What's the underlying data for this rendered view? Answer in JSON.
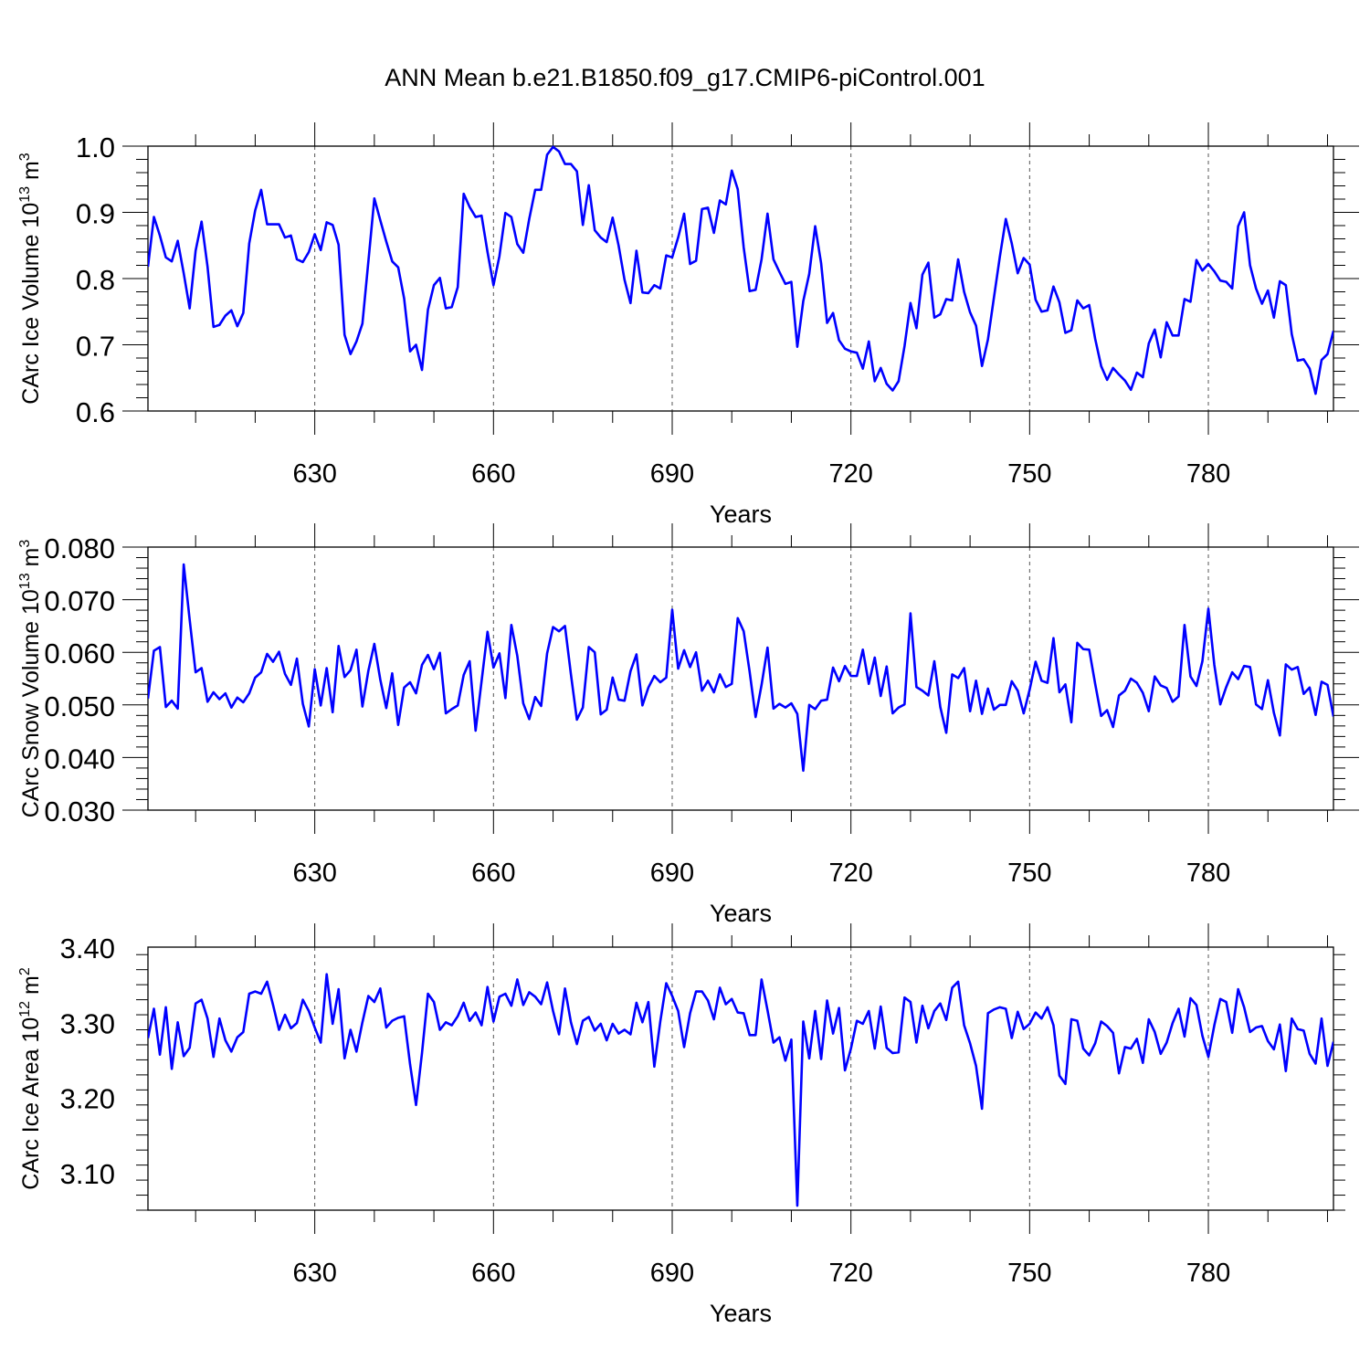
{
  "title": "ANN Mean b.e21.B1850.f09_g17.CMIP6-piControl.001",
  "line_color": "#0000ff",
  "chart_data": [
    {
      "type": "line",
      "ylabel": "CArc Ice Volume 10",
      "ylabel_exp": "13",
      "ylabel_unit": " m",
      "ylabel_unit_exp": "3",
      "xlabel": "Years",
      "xlim": [
        602,
        801
      ],
      "ylim": [
        0.6,
        1.0
      ],
      "yticks": [
        0.6,
        0.7,
        0.8,
        0.9,
        1.0
      ],
      "ytick_labels": [
        "0.6",
        "0.7",
        "0.8",
        "0.9",
        "1.0"
      ],
      "xticks": [
        630,
        660,
        690,
        720,
        750,
        780
      ],
      "xtick_labels": [
        "630",
        "660",
        "690",
        "720",
        "750",
        "780"
      ],
      "grid": "dashed vertical at major x ticks",
      "x_start": 602,
      "values": [
        0.818,
        0.893,
        0.865,
        0.832,
        0.826,
        0.857,
        0.808,
        0.755,
        0.842,
        0.886,
        0.818,
        0.727,
        0.73,
        0.744,
        0.752,
        0.728,
        0.748,
        0.853,
        0.903,
        0.934,
        0.882,
        0.882,
        0.882,
        0.862,
        0.865,
        0.829,
        0.825,
        0.84,
        0.867,
        0.843,
        0.885,
        0.881,
        0.851,
        0.715,
        0.686,
        0.705,
        0.732,
        0.826,
        0.921,
        0.888,
        0.856,
        0.826,
        0.817,
        0.77,
        0.69,
        0.7,
        0.662,
        0.753,
        0.79,
        0.801,
        0.755,
        0.757,
        0.787,
        0.928,
        0.908,
        0.893,
        0.895,
        0.84,
        0.79,
        0.834,
        0.899,
        0.893,
        0.852,
        0.839,
        0.89,
        0.934,
        0.934,
        0.987,
        0.999,
        0.992,
        0.973,
        0.973,
        0.962,
        0.881,
        0.941,
        0.873,
        0.862,
        0.855,
        0.892,
        0.85,
        0.798,
        0.763,
        0.842,
        0.779,
        0.778,
        0.79,
        0.785,
        0.835,
        0.832,
        0.862,
        0.898,
        0.822,
        0.827,
        0.905,
        0.907,
        0.869,
        0.918,
        0.912,
        0.963,
        0.935,
        0.847,
        0.781,
        0.783,
        0.829,
        0.898,
        0.829,
        0.81,
        0.792,
        0.795,
        0.697,
        0.766,
        0.807,
        0.879,
        0.823,
        0.733,
        0.748,
        0.707,
        0.694,
        0.69,
        0.688,
        0.664,
        0.705,
        0.645,
        0.665,
        0.641,
        0.631,
        0.645,
        0.698,
        0.763,
        0.725,
        0.806,
        0.824,
        0.741,
        0.746,
        0.769,
        0.767,
        0.829,
        0.78,
        0.749,
        0.729,
        0.668,
        0.708,
        0.771,
        0.833,
        0.89,
        0.853,
        0.808,
        0.831,
        0.821,
        0.768,
        0.75,
        0.752,
        0.788,
        0.764,
        0.718,
        0.722,
        0.767,
        0.755,
        0.76,
        0.709,
        0.668,
        0.647,
        0.665,
        0.655,
        0.646,
        0.632,
        0.658,
        0.651,
        0.702,
        0.723,
        0.681,
        0.734,
        0.714,
        0.714,
        0.769,
        0.765,
        0.828,
        0.812,
        0.822,
        0.811,
        0.797,
        0.795,
        0.785,
        0.879,
        0.9,
        0.82,
        0.785,
        0.762,
        0.782,
        0.741,
        0.796,
        0.79,
        0.716,
        0.676,
        0.678,
        0.664,
        0.626,
        0.677,
        0.686,
        0.721
      ]
    },
    {
      "type": "line",
      "ylabel": "CArc Snow Volume 10",
      "ylabel_exp": "13",
      "ylabel_unit": " m",
      "ylabel_unit_exp": "3",
      "xlabel": "Years",
      "xlim": [
        602,
        801
      ],
      "ylim": [
        0.03,
        0.08
      ],
      "yticks": [
        0.03,
        0.04,
        0.05,
        0.06,
        0.07,
        0.08
      ],
      "ytick_labels": [
        "0.030",
        "0.040",
        "0.050",
        "0.060",
        "0.070",
        "0.080"
      ],
      "xticks": [
        630,
        660,
        690,
        720,
        750,
        780
      ],
      "xtick_labels": [
        "630",
        "660",
        "690",
        "720",
        "750",
        "780"
      ],
      "grid": "dashed vertical at major x ticks",
      "x_start": 602,
      "values": [
        0.0512,
        0.0603,
        0.061,
        0.0496,
        0.0508,
        0.0493,
        0.0767,
        0.0662,
        0.0562,
        0.057,
        0.0506,
        0.0524,
        0.0511,
        0.0522,
        0.0495,
        0.0514,
        0.0505,
        0.0522,
        0.0552,
        0.0562,
        0.0597,
        0.0582,
        0.0601,
        0.0559,
        0.0538,
        0.0588,
        0.0502,
        0.0459,
        0.0568,
        0.0499,
        0.057,
        0.0486,
        0.0612,
        0.0553,
        0.0566,
        0.0605,
        0.0497,
        0.0565,
        0.0616,
        0.0548,
        0.0494,
        0.056,
        0.0462,
        0.0533,
        0.0543,
        0.0522,
        0.0576,
        0.0595,
        0.0568,
        0.0599,
        0.0484,
        0.0492,
        0.0499,
        0.0557,
        0.0583,
        0.0451,
        0.0545,
        0.0639,
        0.0571,
        0.0598,
        0.0513,
        0.0652,
        0.0593,
        0.0503,
        0.0473,
        0.0515,
        0.0498,
        0.0598,
        0.0648,
        0.064,
        0.065,
        0.0558,
        0.0472,
        0.0495,
        0.061,
        0.06,
        0.0482,
        0.0491,
        0.0552,
        0.051,
        0.0508,
        0.0564,
        0.0596,
        0.0499,
        0.0533,
        0.0555,
        0.0543,
        0.0552,
        0.0681,
        0.0569,
        0.0604,
        0.0572,
        0.06,
        0.0527,
        0.0546,
        0.0524,
        0.0558,
        0.0534,
        0.054,
        0.0665,
        0.064,
        0.0563,
        0.0477,
        0.0538,
        0.0609,
        0.0493,
        0.0502,
        0.0495,
        0.0503,
        0.0483,
        0.0375,
        0.05,
        0.0492,
        0.0508,
        0.051,
        0.0571,
        0.0545,
        0.0574,
        0.0555,
        0.0555,
        0.0605,
        0.054,
        0.059,
        0.0517,
        0.0573,
        0.0484,
        0.0495,
        0.0501,
        0.0674,
        0.0534,
        0.0527,
        0.0518,
        0.0583,
        0.0496,
        0.0447,
        0.0558,
        0.0551,
        0.057,
        0.0488,
        0.0546,
        0.0483,
        0.0531,
        0.0491,
        0.05,
        0.05,
        0.0545,
        0.0527,
        0.0484,
        0.0529,
        0.0582,
        0.0546,
        0.0542,
        0.0627,
        0.0524,
        0.0539,
        0.0467,
        0.0618,
        0.0606,
        0.0605,
        0.054,
        0.0479,
        0.049,
        0.0458,
        0.0518,
        0.0527,
        0.055,
        0.0542,
        0.0523,
        0.0488,
        0.0554,
        0.0537,
        0.0532,
        0.0506,
        0.0516,
        0.0652,
        0.0554,
        0.0536,
        0.0583,
        0.0683,
        0.0576,
        0.0501,
        0.0534,
        0.0562,
        0.0549,
        0.0574,
        0.0572,
        0.0501,
        0.0492,
        0.0547,
        0.0485,
        0.0442,
        0.0577,
        0.0567,
        0.0572,
        0.0521,
        0.0533,
        0.0481,
        0.0544,
        0.0538,
        0.0478
      ]
    },
    {
      "type": "line",
      "ylabel": "CArc Ice Area 10",
      "ylabel_exp": "12",
      "ylabel_unit": " m",
      "ylabel_unit_exp": "2",
      "xlabel": "Years",
      "xlim": [
        602,
        801
      ],
      "ylim": [
        3.05,
        3.4
      ],
      "yticks": [
        3.1,
        3.2,
        3.3,
        3.4
      ],
      "ytick_labels": [
        "3.10",
        "3.20",
        "3.30",
        "3.40"
      ],
      "xticks": [
        630,
        660,
        690,
        720,
        750,
        780
      ],
      "xtick_labels": [
        "630",
        "660",
        "690",
        "720",
        "750",
        "780"
      ],
      "grid": "dashed vertical at major x ticks",
      "x_start": 602,
      "values": [
        3.279,
        3.318,
        3.257,
        3.32,
        3.238,
        3.3,
        3.255,
        3.266,
        3.325,
        3.33,
        3.305,
        3.254,
        3.305,
        3.276,
        3.261,
        3.28,
        3.287,
        3.338,
        3.341,
        3.338,
        3.354,
        3.323,
        3.29,
        3.31,
        3.292,
        3.299,
        3.33,
        3.315,
        3.293,
        3.273,
        3.364,
        3.298,
        3.344,
        3.252,
        3.29,
        3.261,
        3.3,
        3.335,
        3.327,
        3.345,
        3.293,
        3.302,
        3.306,
        3.308,
        3.244,
        3.19,
        3.259,
        3.338,
        3.327,
        3.29,
        3.3,
        3.296,
        3.308,
        3.326,
        3.302,
        3.313,
        3.296,
        3.347,
        3.301,
        3.334,
        3.338,
        3.322,
        3.357,
        3.323,
        3.34,
        3.334,
        3.324,
        3.353,
        3.315,
        3.284,
        3.345,
        3.3,
        3.271,
        3.302,
        3.307,
        3.289,
        3.298,
        3.276,
        3.298,
        3.285,
        3.29,
        3.284,
        3.326,
        3.3,
        3.327,
        3.241,
        3.301,
        3.352,
        3.335,
        3.315,
        3.267,
        3.312,
        3.341,
        3.341,
        3.329,
        3.304,
        3.346,
        3.324,
        3.331,
        3.313,
        3.312,
        3.283,
        3.283,
        3.357,
        3.316,
        3.273,
        3.28,
        3.249,
        3.277,
        3.056,
        3.301,
        3.252,
        3.315,
        3.251,
        3.329,
        3.285,
        3.319,
        3.236,
        3.265,
        3.302,
        3.298,
        3.315,
        3.265,
        3.321,
        3.266,
        3.259,
        3.26,
        3.333,
        3.327,
        3.273,
        3.322,
        3.292,
        3.315,
        3.325,
        3.303,
        3.346,
        3.354,
        3.296,
        3.272,
        3.242,
        3.185,
        3.312,
        3.317,
        3.32,
        3.318,
        3.279,
        3.314,
        3.291,
        3.298,
        3.313,
        3.305,
        3.32,
        3.296,
        3.229,
        3.218,
        3.304,
        3.302,
        3.265,
        3.256,
        3.272,
        3.301,
        3.295,
        3.286,
        3.232,
        3.267,
        3.265,
        3.278,
        3.246,
        3.304,
        3.287,
        3.258,
        3.273,
        3.299,
        3.318,
        3.281,
        3.332,
        3.323,
        3.282,
        3.254,
        3.296,
        3.331,
        3.327,
        3.286,
        3.344,
        3.32,
        3.287,
        3.293,
        3.295,
        3.275,
        3.264,
        3.297,
        3.235,
        3.305,
        3.291,
        3.289,
        3.258,
        3.245,
        3.305,
        3.242,
        3.274
      ]
    }
  ]
}
